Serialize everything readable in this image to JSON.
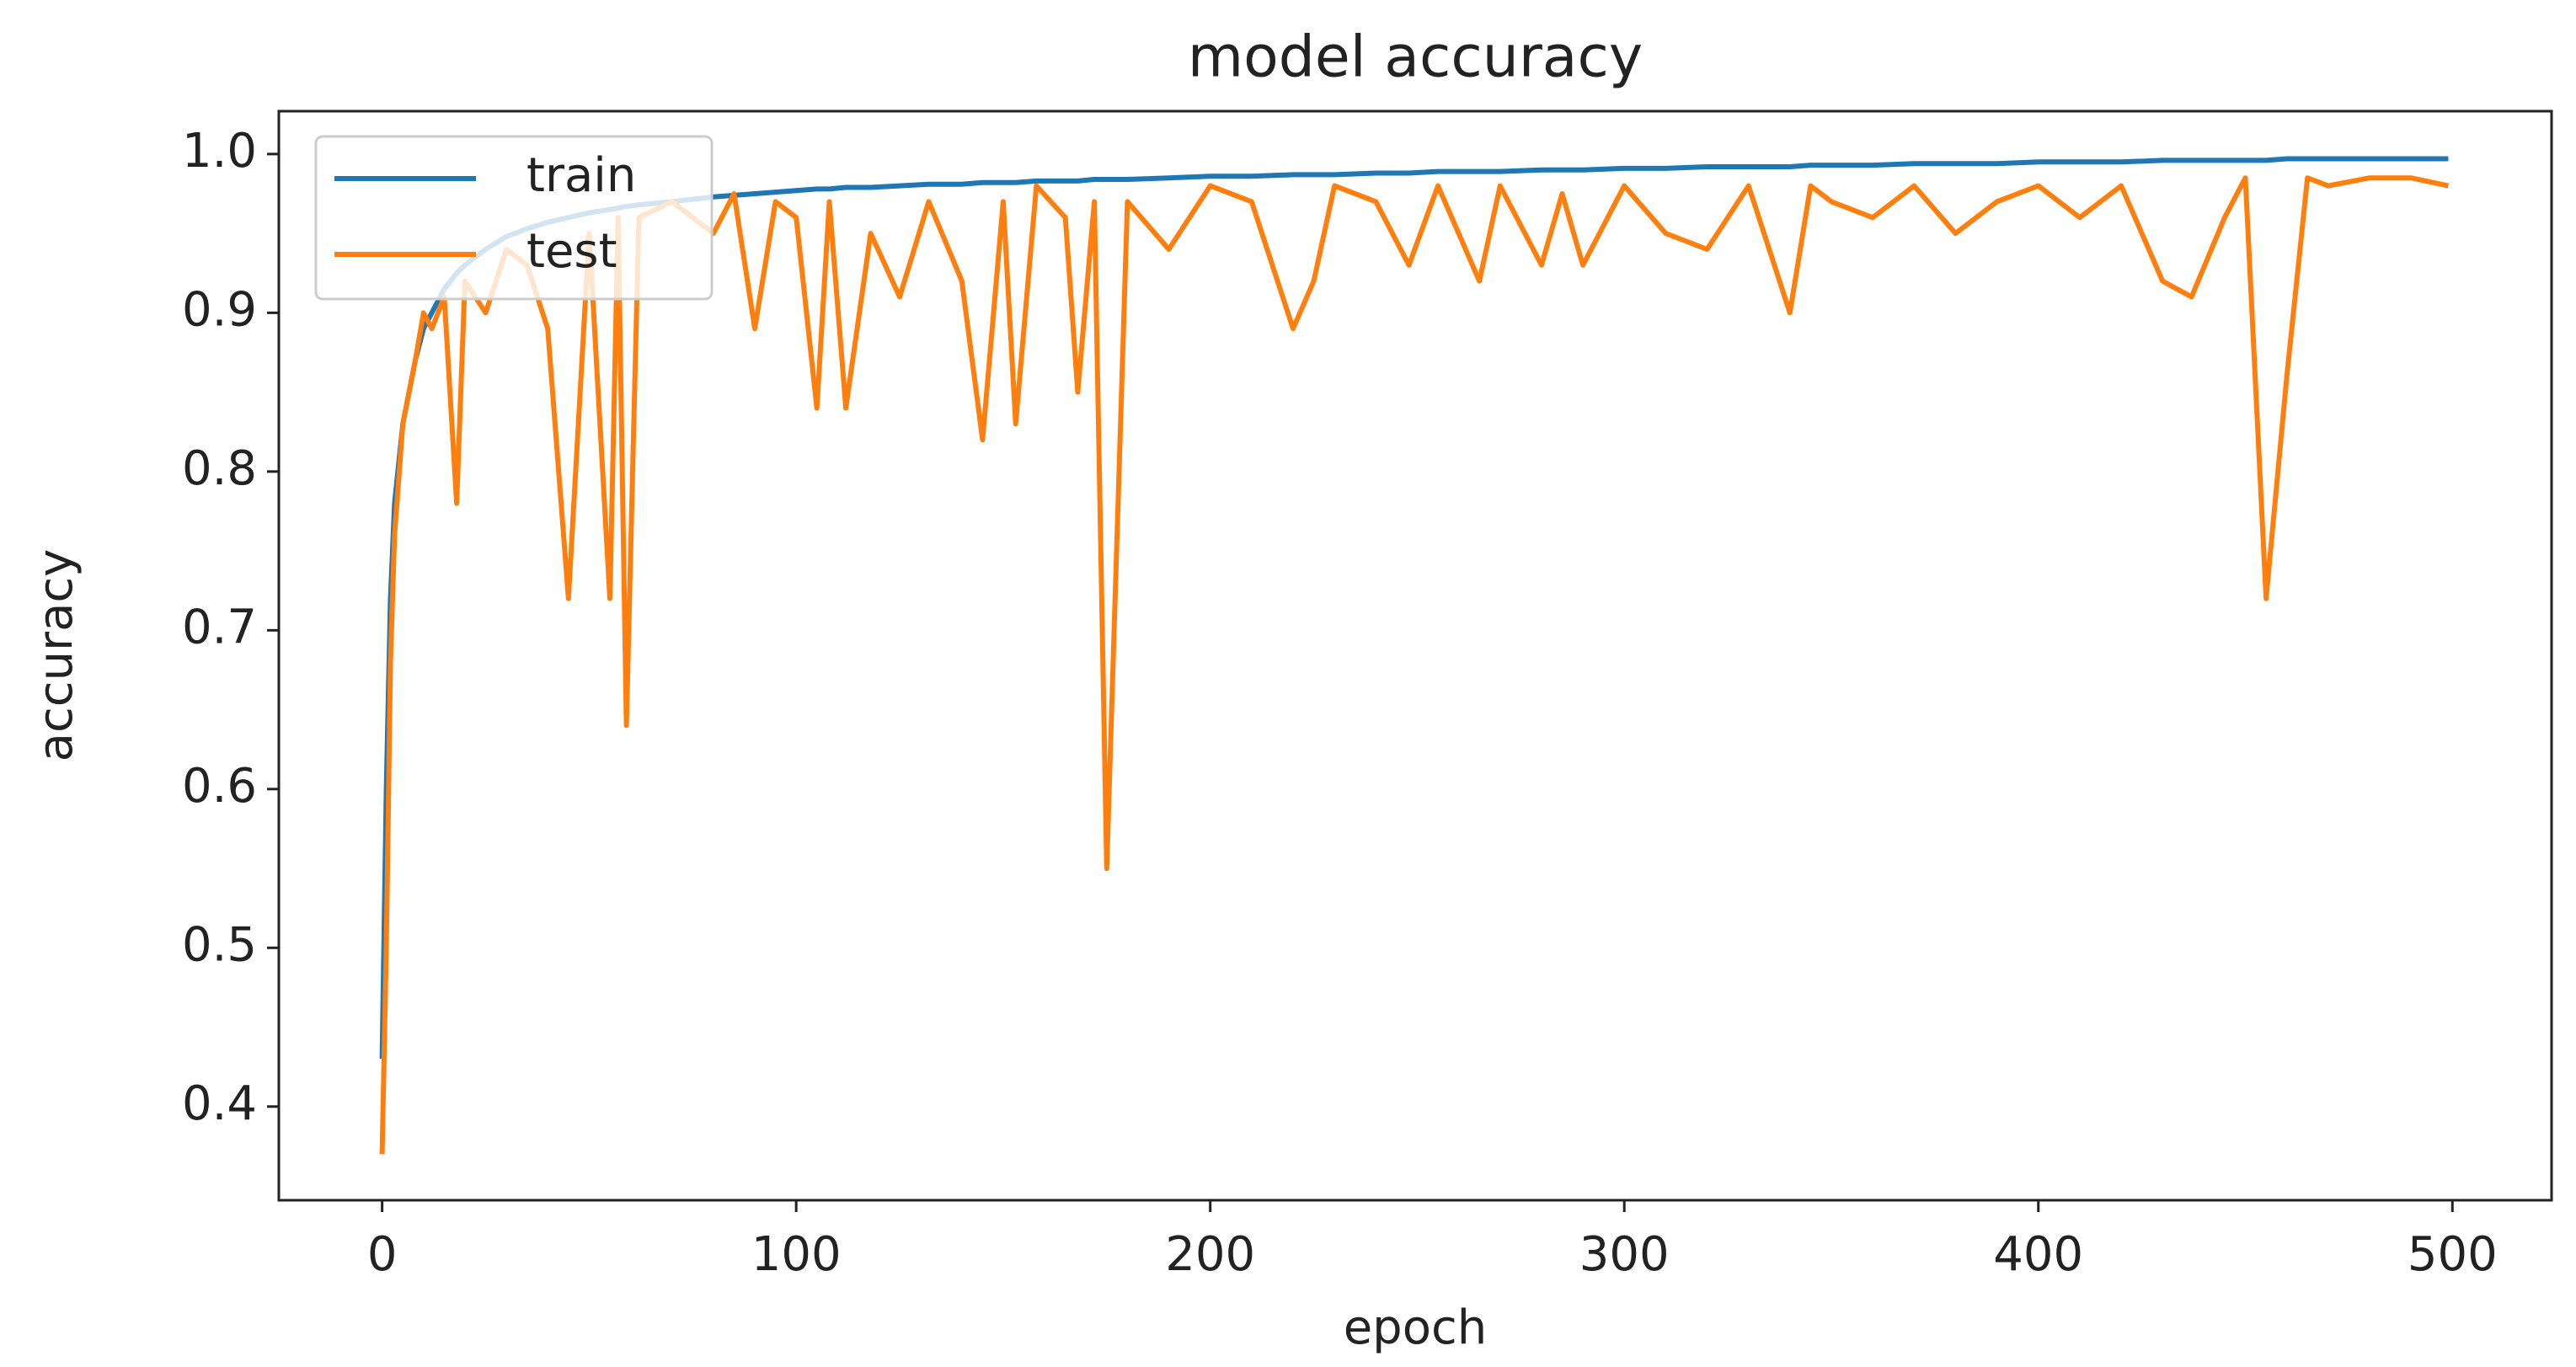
{
  "chart_data": {
    "type": "line",
    "title": "model accuracy",
    "x_label": "epoch",
    "y_label": "accuracy",
    "x": [
      0,
      1,
      2,
      3,
      5,
      8,
      10,
      12,
      15,
      18,
      20,
      25,
      30,
      35,
      40,
      45,
      50,
      55,
      57,
      59,
      62,
      70,
      80,
      85,
      90,
      95,
      100,
      105,
      108,
      112,
      118,
      125,
      132,
      140,
      145,
      150,
      153,
      158,
      165,
      168,
      172,
      175,
      180,
      190,
      200,
      210,
      220,
      225,
      230,
      240,
      248,
      255,
      265,
      270,
      280,
      285,
      290,
      300,
      310,
      320,
      330,
      340,
      345,
      350,
      360,
      370,
      380,
      390,
      400,
      410,
      420,
      430,
      437,
      445,
      450,
      455,
      460,
      465,
      470,
      480,
      490,
      499
    ],
    "series": [
      {
        "name": "train",
        "color": "#1f77b4",
        "values": [
          0.43,
          0.6,
          0.72,
          0.78,
          0.83,
          0.87,
          0.89,
          0.9,
          0.915,
          0.925,
          0.93,
          0.94,
          0.948,
          0.953,
          0.957,
          0.96,
          0.963,
          0.965,
          0.966,
          0.967,
          0.968,
          0.97,
          0.973,
          0.974,
          0.975,
          0.976,
          0.977,
          0.978,
          0.978,
          0.979,
          0.979,
          0.98,
          0.981,
          0.981,
          0.982,
          0.982,
          0.982,
          0.983,
          0.983,
          0.983,
          0.984,
          0.984,
          0.984,
          0.985,
          0.986,
          0.986,
          0.987,
          0.987,
          0.987,
          0.988,
          0.988,
          0.989,
          0.989,
          0.989,
          0.99,
          0.99,
          0.99,
          0.991,
          0.991,
          0.992,
          0.992,
          0.992,
          0.993,
          0.993,
          0.993,
          0.994,
          0.994,
          0.994,
          0.995,
          0.995,
          0.995,
          0.996,
          0.996,
          0.996,
          0.996,
          0.996,
          0.997,
          0.997,
          0.997,
          0.997,
          0.997,
          0.997
        ]
      },
      {
        "name": "test",
        "color": "#ff7f0e",
        "values": [
          0.37,
          0.5,
          0.68,
          0.76,
          0.83,
          0.87,
          0.9,
          0.89,
          0.91,
          0.78,
          0.92,
          0.9,
          0.94,
          0.93,
          0.89,
          0.72,
          0.95,
          0.72,
          0.96,
          0.64,
          0.96,
          0.97,
          0.95,
          0.975,
          0.89,
          0.97,
          0.96,
          0.84,
          0.97,
          0.84,
          0.95,
          0.91,
          0.97,
          0.92,
          0.82,
          0.97,
          0.83,
          0.98,
          0.96,
          0.85,
          0.97,
          0.55,
          0.97,
          0.94,
          0.98,
          0.97,
          0.89,
          0.92,
          0.98,
          0.97,
          0.93,
          0.98,
          0.92,
          0.98,
          0.93,
          0.975,
          0.93,
          0.98,
          0.95,
          0.94,
          0.98,
          0.9,
          0.98,
          0.97,
          0.96,
          0.98,
          0.95,
          0.97,
          0.98,
          0.96,
          0.98,
          0.92,
          0.91,
          0.96,
          0.985,
          0.72,
          0.86,
          0.985,
          0.98,
          0.985,
          0.985,
          0.98
        ]
      }
    ],
    "xlim": [
      -24.95,
      523.95
    ],
    "ylim": [
      0.341,
      1.027
    ],
    "xticks": [
      0,
      100,
      200,
      300,
      400,
      500
    ],
    "yticks": [
      0.4,
      0.5,
      0.6,
      0.7,
      0.8,
      0.9,
      {
        "value": 1.0,
        "label": "1.0"
      }
    ],
    "legend": "upper left"
  }
}
